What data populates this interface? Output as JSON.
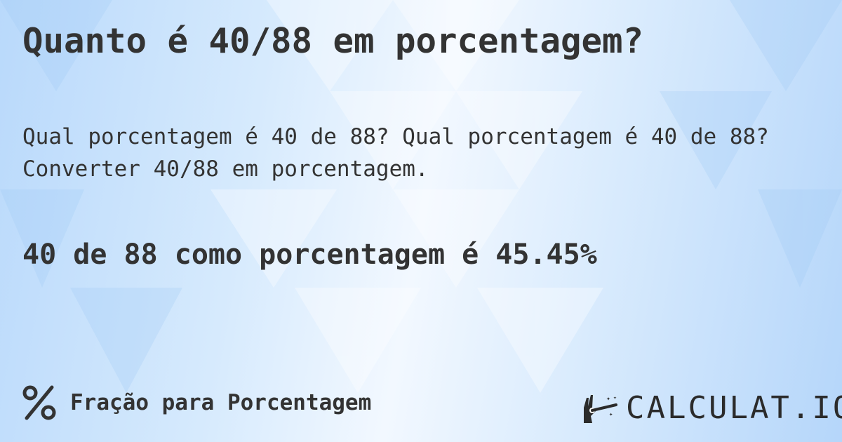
{
  "title": "Quanto é 40/88 em porcentagem?",
  "question_line1": "Qual porcentagem é 40 de 88? Qual porcentagem é 40 de 88?",
  "question_line2": "Converter 40/88 em porcentagem.",
  "answer": "40 de 88 como porcentagem é 45.45%",
  "footer": {
    "icon": "percent-icon",
    "label": "Fração para Porcentagem"
  },
  "logo": {
    "text": "CALCULAT.IO",
    "icon": "magic-hand-wand-icon"
  },
  "colors": {
    "text": "#333333",
    "background": "#d6eafd"
  }
}
